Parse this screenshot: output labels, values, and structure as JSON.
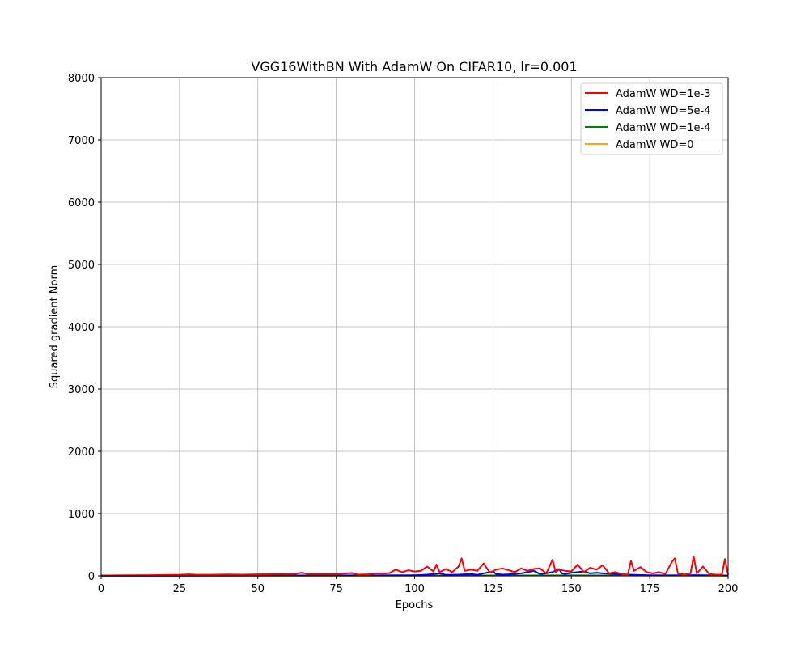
{
  "chart_data": {
    "type": "line",
    "title": "VGG16WithBN With AdamW On CIFAR10, lr=0.001",
    "xlabel": "Epochs",
    "ylabel": "Squared gradient Norm",
    "xlim": [
      0,
      200
    ],
    "ylim": [
      0,
      8000
    ],
    "xticks": [
      0,
      25,
      50,
      75,
      100,
      125,
      150,
      175,
      200
    ],
    "yticks": [
      0,
      1000,
      2000,
      3000,
      4000,
      5000,
      6000,
      7000,
      8000
    ],
    "grid": true,
    "legend_position": "top-right",
    "series": [
      {
        "name": "AdamW WD=1e-3",
        "color": "#ff0000",
        "x": [
          0,
          5,
          10,
          15,
          20,
          25,
          28,
          30,
          35,
          40,
          45,
          50,
          55,
          60,
          62,
          64,
          66,
          70,
          75,
          80,
          82,
          85,
          88,
          90,
          92,
          94,
          96,
          98,
          100,
          102,
          104,
          106,
          107,
          108,
          110,
          112,
          114,
          115,
          116,
          118,
          120,
          122,
          124,
          126,
          128,
          130,
          132,
          134,
          136,
          138,
          140,
          142,
          144,
          145,
          146,
          148,
          150,
          152,
          154,
          156,
          158,
          160,
          162,
          164,
          166,
          168,
          169,
          170,
          172,
          174,
          176,
          178,
          180,
          182,
          183,
          184,
          186,
          188,
          189,
          190,
          192,
          194,
          196,
          198,
          199,
          200
        ],
        "y": [
          5,
          8,
          10,
          12,
          14,
          18,
          25,
          20,
          18,
          22,
          20,
          25,
          30,
          28,
          32,
          50,
          30,
          28,
          30,
          45,
          20,
          25,
          40,
          35,
          45,
          100,
          60,
          90,
          70,
          80,
          150,
          70,
          180,
          60,
          110,
          60,
          150,
          280,
          80,
          100,
          80,
          200,
          50,
          100,
          120,
          90,
          60,
          120,
          80,
          110,
          120,
          40,
          260,
          60,
          100,
          80,
          70,
          180,
          60,
          130,
          100,
          170,
          40,
          60,
          30,
          20,
          240,
          80,
          140,
          60,
          40,
          60,
          30,
          220,
          280,
          40,
          20,
          40,
          310,
          40,
          150,
          30,
          20,
          20,
          270,
          20
        ]
      },
      {
        "name": "AdamW WD=5e-4",
        "color": "#0000ff",
        "x": [
          0,
          20,
          40,
          60,
          80,
          100,
          104,
          106,
          108,
          110,
          114,
          118,
          120,
          122,
          124,
          125,
          126,
          128,
          130,
          134,
          136,
          138,
          140,
          142,
          144,
          146,
          147,
          148,
          150,
          152,
          154,
          156,
          158,
          160,
          164,
          168,
          170,
          175,
          180,
          185,
          190,
          195,
          200
        ],
        "y": [
          2,
          4,
          5,
          6,
          8,
          10,
          20,
          30,
          40,
          15,
          20,
          30,
          15,
          40,
          60,
          70,
          30,
          20,
          25,
          40,
          60,
          80,
          30,
          40,
          60,
          110,
          40,
          30,
          50,
          60,
          70,
          40,
          50,
          40,
          30,
          20,
          15,
          10,
          8,
          10,
          12,
          8,
          5
        ]
      },
      {
        "name": "AdamW WD=1e-4",
        "color": "#008000",
        "x": [
          0,
          50,
          100,
          125,
          150,
          175,
          200
        ],
        "y": [
          2,
          3,
          5,
          6,
          8,
          6,
          5
        ]
      },
      {
        "name": "AdamW WD=0",
        "color": "#ffa500",
        "x": [
          0,
          50,
          100,
          125,
          150,
          175,
          200
        ],
        "y": [
          1,
          2,
          3,
          4,
          5,
          4,
          3
        ]
      }
    ]
  }
}
